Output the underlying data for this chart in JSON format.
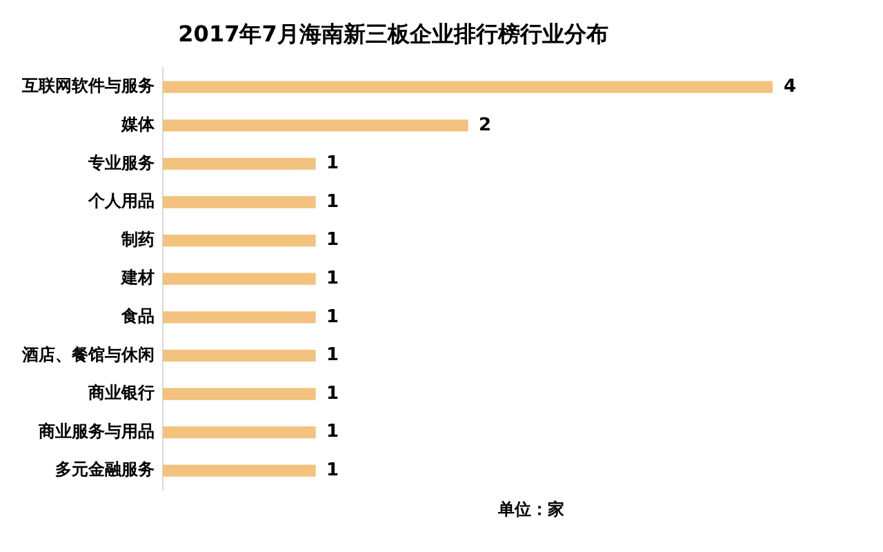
{
  "chart_data": {
    "type": "bar",
    "orientation": "horizontal",
    "title": "2017年7月海南新三板企业排行榜行业分布",
    "categories": [
      "互联网软件与服务",
      "媒体",
      "专业服务",
      "个人用品",
      "制药",
      "建材",
      "食品",
      "酒店、餐馆与休闲",
      "商业银行",
      "商业服务与用品",
      "多元金融服务"
    ],
    "values": [
      4,
      2,
      1,
      1,
      1,
      1,
      1,
      1,
      1,
      1,
      1
    ],
    "color": "#f2c27e",
    "data_labels": true,
    "legend": false,
    "annotations": [
      "单位：家"
    ]
  }
}
